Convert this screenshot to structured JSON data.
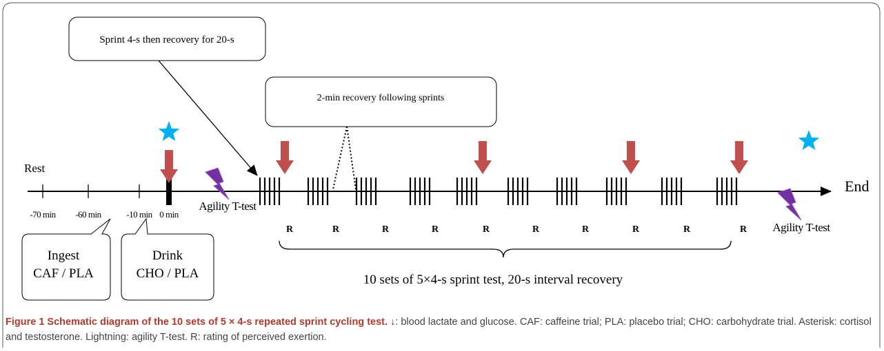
{
  "callouts": {
    "sprint": "Sprint 4-s then recovery for 20-s",
    "recovery": "2-min recovery following sprints"
  },
  "timeline": {
    "start_label": "Rest",
    "end_label": "End",
    "ticks": [
      "-70 min",
      "-60 min",
      "-10 min",
      "0 min"
    ]
  },
  "agility_labels": [
    "Agility T-test",
    "Agility T-test"
  ],
  "rpe_labels": [
    "R",
    "R",
    "R",
    "R",
    "R",
    "R",
    "R",
    "R",
    "R",
    "R"
  ],
  "bubbles": [
    {
      "line1": "Ingest",
      "line2": "CAF / PLA"
    },
    {
      "line1": "Drink",
      "line2": "CHO / PLA"
    }
  ],
  "brace_label": "10 sets of 5×4-s sprint test, 20-s interval recovery",
  "caption": {
    "label": "Figure 1 Schematic diagram of the 10 sets of 5 × 4-s repeated sprint cycling test.",
    "text": "↓: blood lactate and glucose. CAF: caffeine trial; PLA: placebo trial; CHO: carbohydrate trial. Asterisk: cortisol and testosterone. Lightning: agility T-test. R: rating of perceived exertion."
  }
}
